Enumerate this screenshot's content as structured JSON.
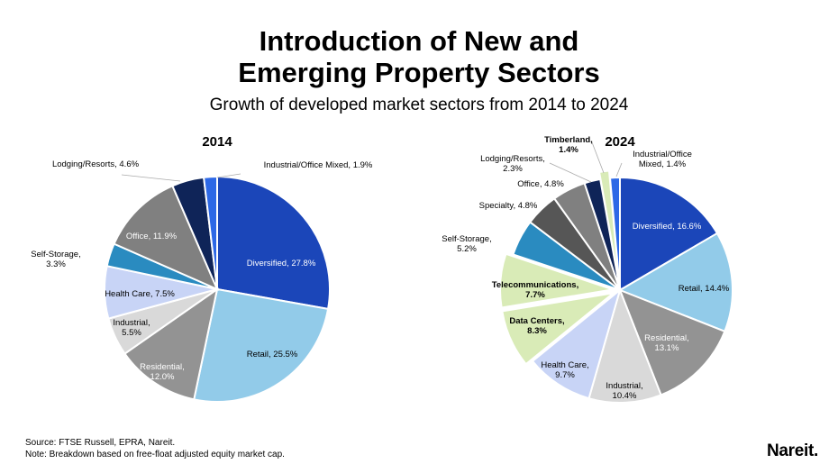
{
  "title_lines": [
    "Introduction of New and",
    "Emerging Property Sectors"
  ],
  "subtitle": "Growth of developed market sectors from 2014 to 2024",
  "footer": {
    "source": "Source: FTSE Russell, EPRA, Nareit.",
    "note": "Note: Breakdown based on free-float adjusted equity market cap."
  },
  "logo_text": "Nareit.",
  "chart_data": [
    {
      "type": "pie",
      "title": "2014",
      "unit": "%",
      "slices": [
        {
          "label": "Diversified",
          "value": 27.8,
          "color": "#1b46b9"
        },
        {
          "label": "Retail",
          "value": 25.5,
          "color": "#92cbe9"
        },
        {
          "label": "Residential",
          "value": 12.0,
          "color": "#939393"
        },
        {
          "label": "Industrial",
          "value": 5.5,
          "color": "#d9d9d9"
        },
        {
          "label": "Health Care",
          "value": 7.5,
          "color": "#c8d4f6"
        },
        {
          "label": "Self-Storage",
          "value": 3.3,
          "color": "#2a8bc0"
        },
        {
          "label": "Office",
          "value": 11.9,
          "color": "#808080"
        },
        {
          "label": "Lodging/Resorts",
          "value": 4.6,
          "color": "#0f2458"
        },
        {
          "label": "Industrial/Office Mixed",
          "value": 1.9,
          "color": "#2d68e6"
        }
      ]
    },
    {
      "type": "pie",
      "title": "2024",
      "unit": "%",
      "slices": [
        {
          "label": "Diversified",
          "value": 16.6,
          "color": "#1b46b9"
        },
        {
          "label": "Retail",
          "value": 14.4,
          "color": "#92cbe9"
        },
        {
          "label": "Residential",
          "value": 13.1,
          "color": "#939393"
        },
        {
          "label": "Industrial",
          "value": 10.4,
          "color": "#d9d9d9"
        },
        {
          "label": "Health Care",
          "value": 9.7,
          "color": "#c8d4f6"
        },
        {
          "label": "Data Centers",
          "value": 8.3,
          "color": "#d9ebb7",
          "emphasized": true
        },
        {
          "label": "Telecommunications",
          "value": 7.7,
          "color": "#d9ebb7",
          "emphasized": true
        },
        {
          "label": "Self-Storage",
          "value": 5.2,
          "color": "#2a8bc0"
        },
        {
          "label": "Specialty",
          "value": 4.8,
          "color": "#565656"
        },
        {
          "label": "Office",
          "value": 4.8,
          "color": "#808080"
        },
        {
          "label": "Lodging/Resorts",
          "value": 2.3,
          "color": "#0f2458"
        },
        {
          "label": "Timberland",
          "value": 1.4,
          "color": "#d9ebb7",
          "emphasized": true
        },
        {
          "label": "Industrial/Office Mixed",
          "value": 1.4,
          "color": "#2d68e6"
        }
      ]
    }
  ]
}
